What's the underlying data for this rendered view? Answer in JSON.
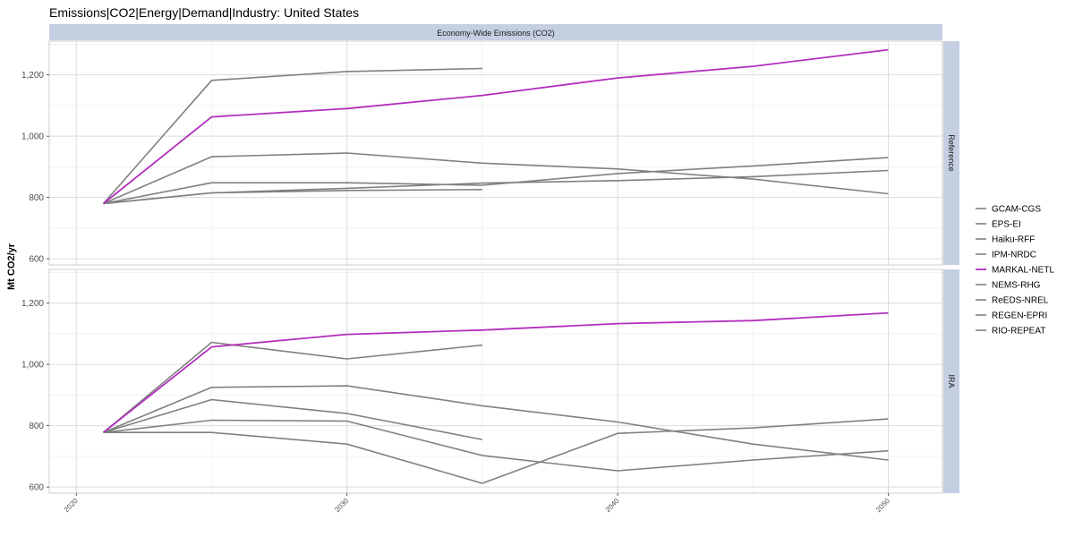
{
  "title": "Emissions|CO2|Energy|Demand|Industry: United States",
  "top_strip": "Economy-Wide Emissions (CO2)",
  "chart_data": {
    "type": "line",
    "ylabel": "Mt CO2/yr",
    "xlabel": "",
    "xlim": [
      2019,
      2052
    ],
    "ylim": [
      580,
      1310
    ],
    "x_ticks": [
      2020,
      2030,
      2040,
      2050
    ],
    "y_ticks": [
      600,
      800,
      1000,
      1200
    ],
    "y_tick_labels": [
      "600",
      "800",
      "1,000",
      "1,200"
    ],
    "grid": true,
    "legend_position": "right",
    "series_names": [
      "GCAM-CGS",
      "EPS-EI",
      "Haiku-RFF",
      "IPM-NRDC",
      "MARKAL-NETL",
      "NEMS-RHG",
      "ReEDS-NREL",
      "REGEN-EPRI",
      "RIO-REPEAT"
    ],
    "series_colors": {
      "GCAM-CGS": "#808080",
      "EPS-EI": "#808080",
      "Haiku-RFF": "#808080",
      "IPM-NRDC": "#808080",
      "MARKAL-NETL": "#b22fbd",
      "NEMS-RHG": "#808080",
      "ReEDS-NREL": "#808080",
      "REGEN-EPRI": "#808080",
      "RIO-REPEAT": "#808080"
    },
    "panels": [
      {
        "label": "Reference",
        "series": [
          {
            "name": "MARKAL-NETL",
            "x": [
              2021,
              2025,
              2030,
              2035,
              2040,
              2045,
              2050
            ],
            "y": [
              780,
              1063,
              1090,
              1133,
              1190,
              1228,
              1282
            ]
          },
          {
            "name": "",
            "x": [
              2021,
              2025,
              2030,
              2035
            ],
            "y": [
              780,
              1182,
              1211,
              1221
            ]
          },
          {
            "name": "",
            "x": [
              2021,
              2025,
              2030,
              2035,
              2040,
              2045,
              2050
            ],
            "y": [
              780,
              933,
              945,
              912,
              893,
              860,
              812
            ]
          },
          {
            "name": "",
            "x": [
              2021,
              2025,
              2030,
              2035,
              2040,
              2045,
              2050
            ],
            "y": [
              780,
              848,
              848,
              840,
              878,
              903,
              930
            ]
          },
          {
            "name": "",
            "x": [
              2021,
              2025,
              2030,
              2035,
              2040,
              2045,
              2050
            ],
            "y": [
              780,
              815,
              830,
              847,
              855,
              868,
              888
            ]
          },
          {
            "name": "",
            "x": [
              2021,
              2025,
              2030,
              2035
            ],
            "y": [
              780,
              815,
              823,
              826
            ]
          }
        ]
      },
      {
        "label": "IRA",
        "series": [
          {
            "name": "MARKAL-NETL",
            "x": [
              2021,
              2025,
              2030,
              2035,
              2040,
              2045,
              2050
            ],
            "y": [
              778,
              1057,
              1098,
              1112,
              1133,
              1143,
              1168
            ]
          },
          {
            "name": "",
            "x": [
              2021,
              2025,
              2030,
              2035
            ],
            "y": [
              778,
              1072,
              1018,
              1063
            ]
          },
          {
            "name": "",
            "x": [
              2021,
              2025,
              2030,
              2035,
              2040,
              2045,
              2050
            ],
            "y": [
              778,
              925,
              930,
              865,
              812,
              740,
              688
            ]
          },
          {
            "name": "",
            "x": [
              2021,
              2025,
              2030,
              2035
            ],
            "y": [
              778,
              885,
              840,
              755
            ]
          },
          {
            "name": "",
            "x": [
              2021,
              2025,
              2030,
              2035,
              2040,
              2045,
              2050
            ],
            "y": [
              778,
              818,
              815,
              703,
              653,
              688,
              718
            ]
          },
          {
            "name": "",
            "x": [
              2021,
              2025,
              2030,
              2035,
              2040,
              2045,
              2050
            ],
            "y": [
              778,
              778,
              740,
              612,
              775,
              793,
              822
            ]
          }
        ]
      }
    ]
  }
}
